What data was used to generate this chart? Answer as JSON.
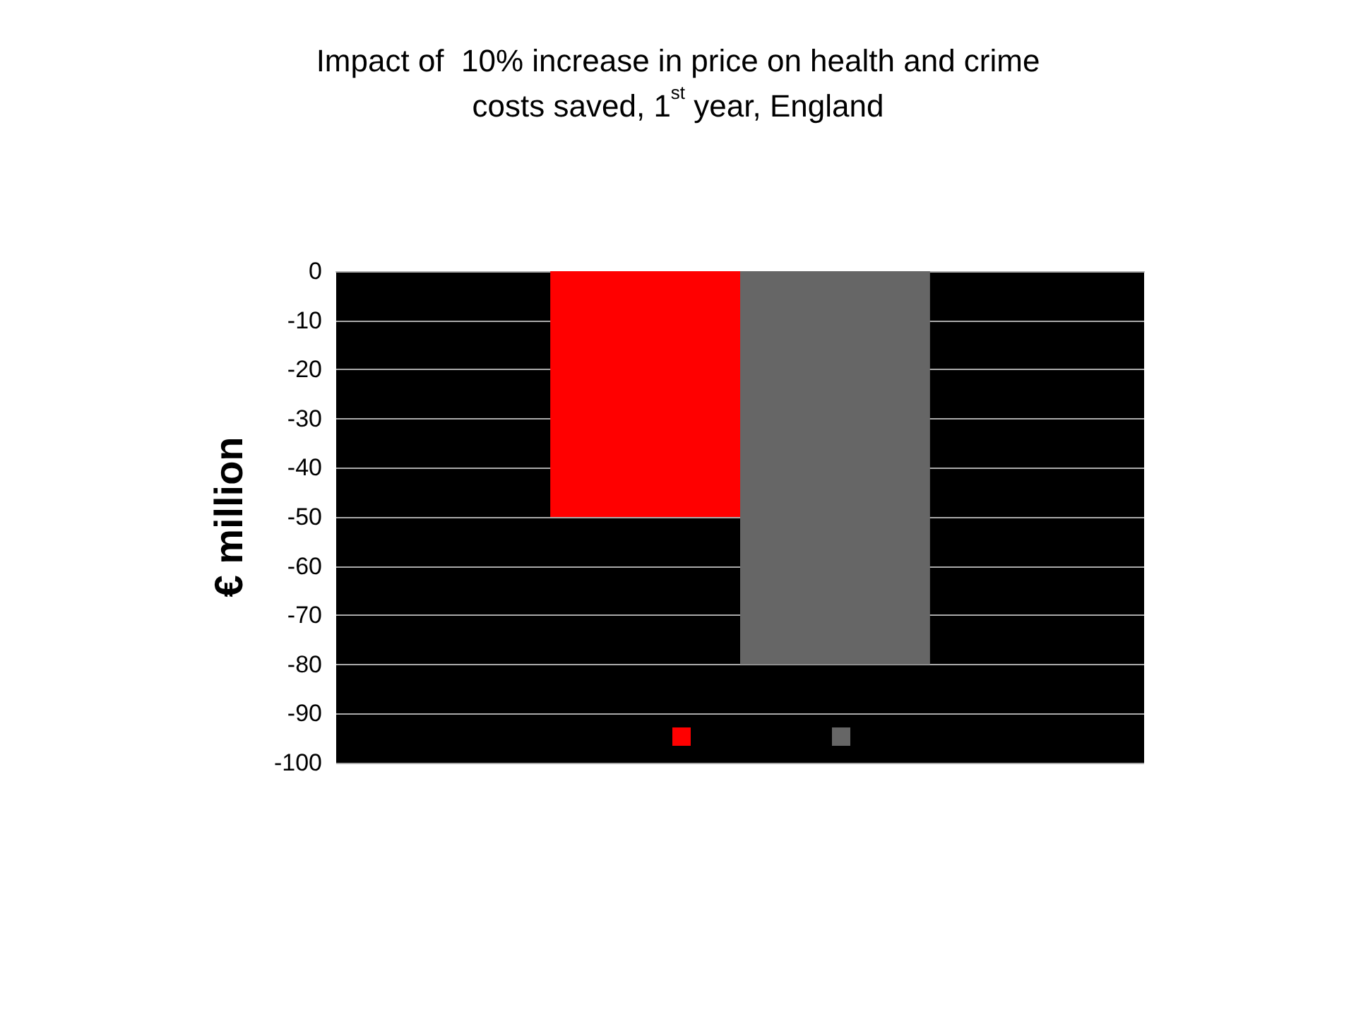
{
  "chart_data": {
    "type": "bar",
    "title": "Impact of  10% increase in price on health and crime\ncosts saved, 1$^{st}$ year, England",
    "ylabel": "€ million",
    "categories": [
      null
    ],
    "series": [
      {
        "color": "#ff0000",
        "values": [
          -50
        ]
      },
      {
        "color": "#666666",
        "values": [
          -80
        ]
      }
    ],
    "ylim": [
      -100,
      0
    ],
    "yticks": [
      -100,
      -90,
      -80,
      -70,
      -60,
      -50,
      -40,
      -30,
      -20,
      -10,
      0
    ],
    "grid": "y"
  }
}
